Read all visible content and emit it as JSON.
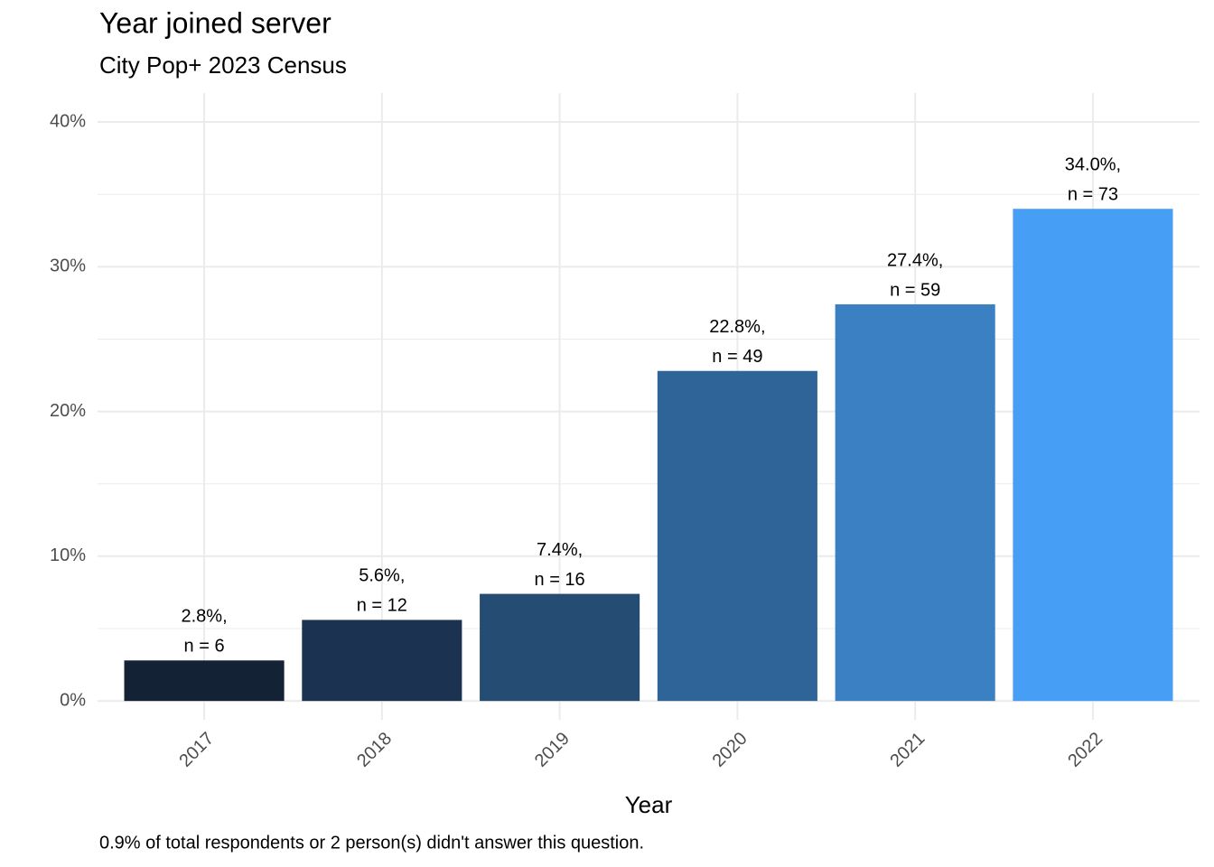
{
  "chart_data": {
    "type": "bar",
    "title": "Year joined server",
    "subtitle": "City Pop+ 2023 Census",
    "x_label": "Year",
    "caption": "0.9% of total respondents or 2 person(s) didn't answer this question.",
    "categories": [
      "2017",
      "2018",
      "2019",
      "2020",
      "2021",
      "2022"
    ],
    "values": [
      2.8,
      5.6,
      7.4,
      22.8,
      27.4,
      34.0
    ],
    "value_labels": [
      "2.8%,",
      "5.6%,",
      "7.4%,",
      "22.8%,",
      "27.4%,",
      "34.0%,"
    ],
    "n_labels": [
      "n = 6",
      "n = 12",
      "n = 16",
      "n = 49",
      "n = 59",
      "n = 73"
    ],
    "colors": [
      "#132235",
      "#1b3350",
      "#254d74",
      "#2f6498",
      "#3c80c4",
      "#479ef5"
    ],
    "ylim": [
      -1.3,
      42
    ],
    "yticks": [
      {
        "value": 0,
        "label": "0%"
      },
      {
        "value": 10,
        "label": "10%"
      },
      {
        "value": 20,
        "label": "20%"
      },
      {
        "value": 30,
        "label": "30%"
      },
      {
        "value": 40,
        "label": "40%"
      }
    ],
    "minor_yticks": [
      5,
      15,
      25,
      35
    ],
    "grid": true
  }
}
